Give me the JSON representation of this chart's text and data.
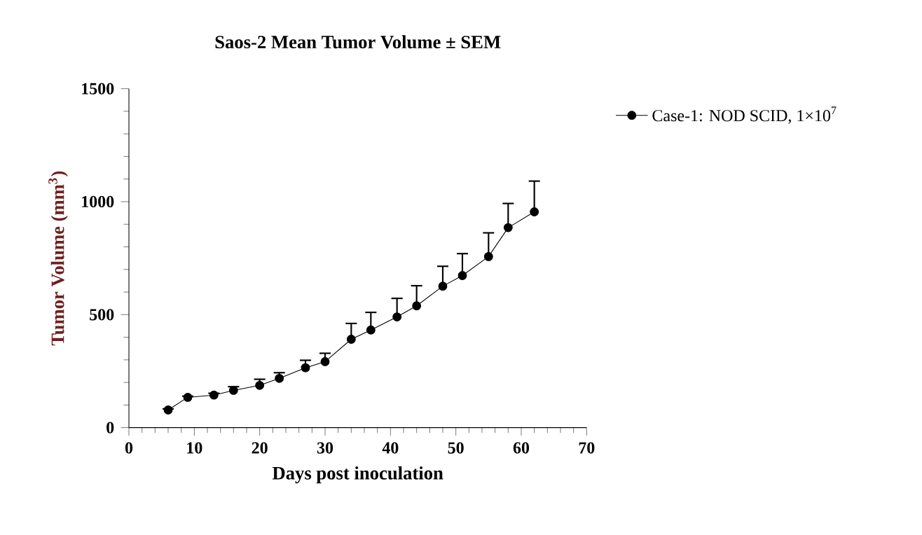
{
  "chart_data": {
    "type": "line",
    "title": "Saos-2 Mean Tumor Volume ± SEM",
    "xlabel": "Days post inoculation",
    "ylabel": "Tumor Volume (mm$^{3}$)",
    "x": [
      6,
      9,
      13,
      16,
      20,
      23,
      27,
      30,
      34,
      37,
      41,
      44,
      48,
      51,
      55,
      58,
      62
    ],
    "series": [
      {
        "name": "Case-1: NOD SCID, 1×10$^{7}$",
        "color": "#000000",
        "values": [
          78,
          134,
          144,
          165,
          187,
          218,
          265,
          292,
          391,
          432,
          490,
          539,
          626,
          673,
          757,
          885,
          955
        ],
        "errors": [
          5,
          5,
          8,
          16,
          27,
          25,
          33,
          37,
          70,
          78,
          82,
          89,
          88,
          97,
          105,
          107,
          136
        ]
      }
    ],
    "xlim": [
      0,
      70
    ],
    "xticks": [
      0,
      10,
      20,
      30,
      40,
      50,
      60,
      70
    ],
    "ylim": [
      0,
      1500
    ],
    "yticks": [
      0,
      500,
      1000,
      1500
    ],
    "grid": false,
    "legend": "top right",
    "marker": "circle",
    "line_style": "solid"
  }
}
